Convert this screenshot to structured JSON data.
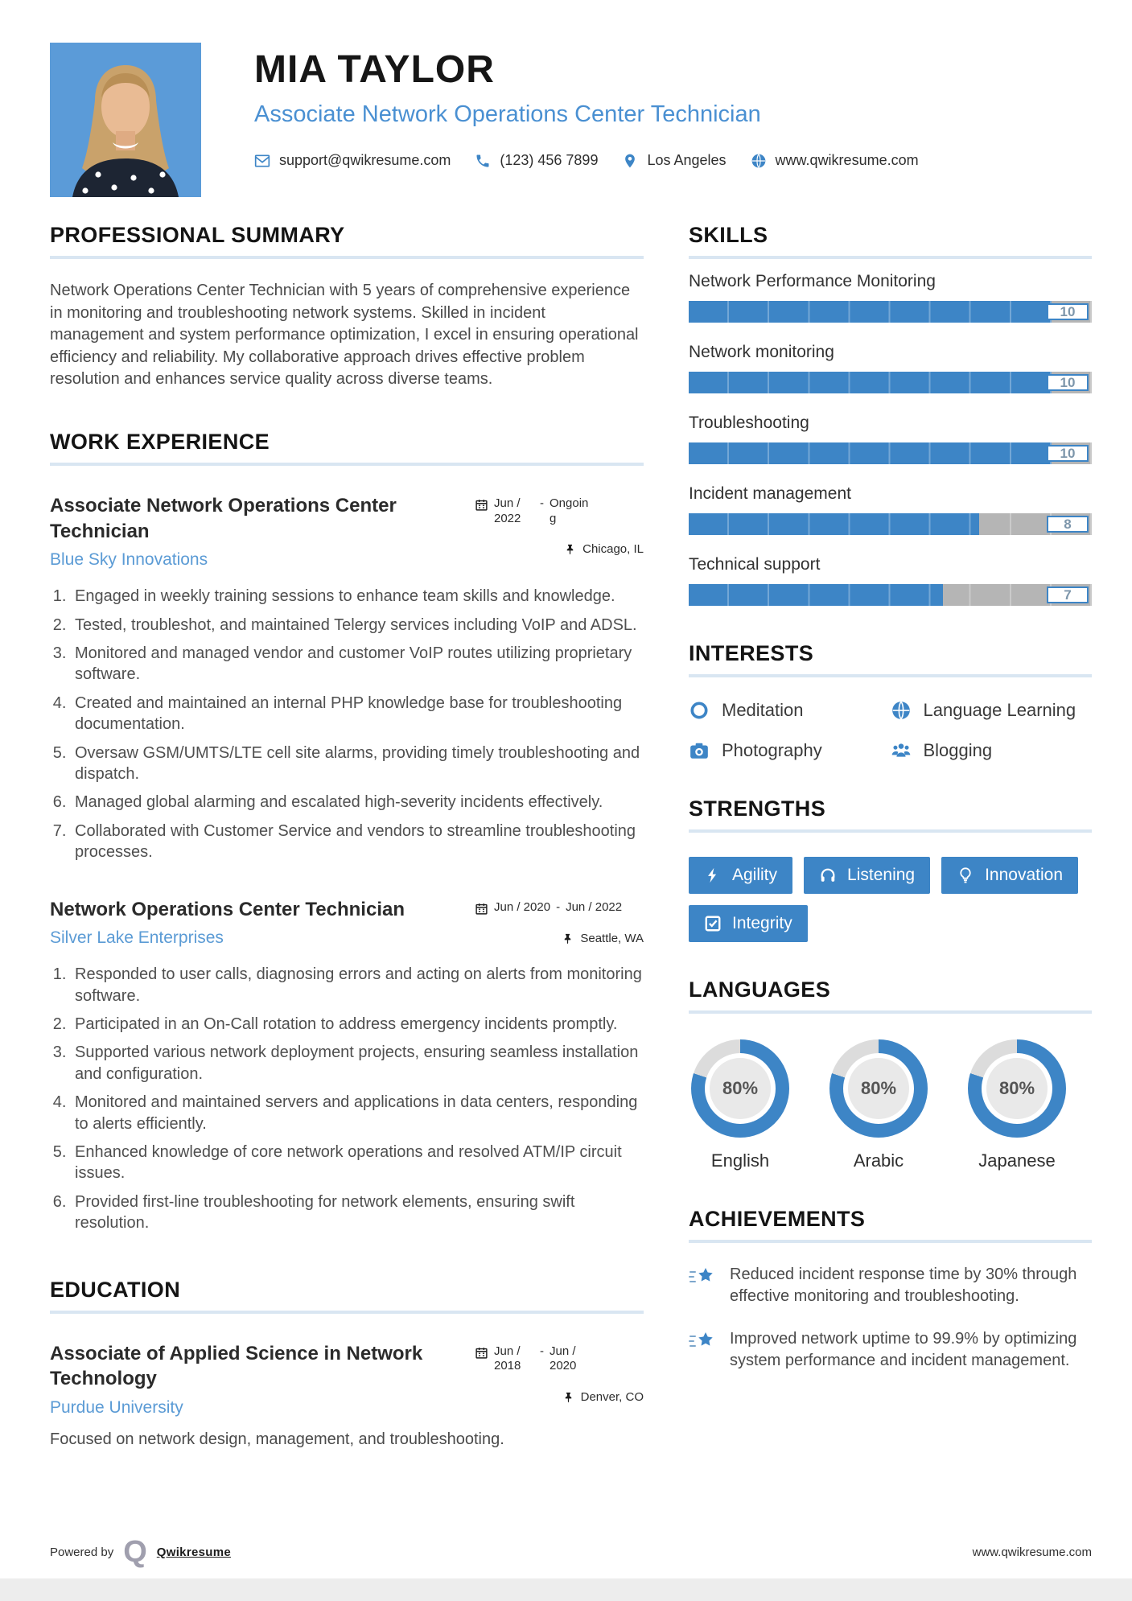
{
  "header": {
    "name": "MIA TAYLOR",
    "title": "Associate Network Operations Center Technician",
    "contact": [
      {
        "icon": "envelope-icon",
        "value": "support@qwikresume.com"
      },
      {
        "icon": "phone-icon",
        "value": "(123) 456 7899"
      },
      {
        "icon": "map-pin-icon",
        "value": "Los Angeles"
      },
      {
        "icon": "globe-icon",
        "value": "www.qwikresume.com"
      }
    ]
  },
  "left": {
    "summary": {
      "heading": "PROFESSIONAL SUMMARY",
      "text": "Network Operations Center Technician with 5 years of comprehensive experience in monitoring and troubleshooting network systems. Skilled in incident management and system performance optimization, I excel in ensuring operational efficiency and reliability. My collaborative approach drives effective problem resolution and enhances service quality across diverse teams."
    },
    "work": {
      "heading": "WORK EXPERIENCE",
      "jobs": [
        {
          "title": "Associate Network Operations Center Technician",
          "company": "Blue Sky Innovations",
          "date_start": "Jun / 2022",
          "date_end": "Ongoing",
          "location": "Chicago, IL",
          "bullets": [
            "Engaged in weekly training sessions to enhance team skills and knowledge.",
            "Tested, troubleshot, and maintained Telergy services including VoIP and ADSL.",
            "Monitored and managed vendor and customer VoIP routes utilizing proprietary software.",
            "Created and maintained an internal PHP knowledge base for troubleshooting documentation.",
            "Oversaw GSM/UMTS/LTE cell site alarms, providing timely troubleshooting and dispatch.",
            "Managed global alarming and escalated high-severity incidents effectively.",
            "Collaborated with Customer Service and vendors to streamline troubleshooting processes."
          ]
        },
        {
          "title": "Network Operations Center Technician",
          "company": "Silver Lake Enterprises",
          "date_start": "Jun / 2020",
          "date_end": "Jun / 2022",
          "location": "Seattle, WA",
          "bullets": [
            "Responded to user calls, diagnosing errors and acting on alerts from monitoring software.",
            "Participated in an On-Call rotation to address emergency incidents promptly.",
            "Supported various network deployment projects, ensuring seamless installation and configuration.",
            "Monitored and maintained servers and applications in data centers, responding to alerts efficiently.",
            "Enhanced knowledge of core network operations and resolved ATM/IP circuit issues.",
            "Provided first-line troubleshooting for network elements, ensuring swift resolution."
          ]
        }
      ]
    },
    "education": {
      "heading": "EDUCATION",
      "degree": "Associate of Applied Science in Network Technology",
      "school": "Purdue University",
      "date_start": "Jun / 2018",
      "date_end": "Jun / 2020",
      "location": "Denver, CO",
      "note": "Focused on network design, management, and troubleshooting."
    }
  },
  "right": {
    "skills": {
      "heading": "SKILLS",
      "items": [
        {
          "label": "Network Performance Monitoring",
          "value": 10
        },
        {
          "label": "Network monitoring",
          "value": 10
        },
        {
          "label": "Troubleshooting",
          "value": 10
        },
        {
          "label": "Incident management",
          "value": 8
        },
        {
          "label": "Technical support",
          "value": 7
        }
      ]
    },
    "interests": {
      "heading": "INTERESTS",
      "items": [
        {
          "label": "Meditation",
          "icon": "ring-icon"
        },
        {
          "label": "Language Learning",
          "icon": "globe-icon"
        },
        {
          "label": "Photography",
          "icon": "camera-icon"
        },
        {
          "label": "Blogging",
          "icon": "users-icon"
        }
      ]
    },
    "strengths": {
      "heading": "STRENGTHS",
      "items": [
        {
          "label": "Agility",
          "icon": "bolt-icon"
        },
        {
          "label": "Listening",
          "icon": "headphones-icon"
        },
        {
          "label": "Innovation",
          "icon": "lightbulb-icon"
        },
        {
          "label": "Integrity",
          "icon": "check-square-icon"
        }
      ]
    },
    "languages": {
      "heading": "LANGUAGES",
      "items": [
        {
          "label": "English",
          "percent": 80,
          "percent_label": "80%"
        },
        {
          "label": "Arabic",
          "percent": 80,
          "percent_label": "80%"
        },
        {
          "label": "Japanese",
          "percent": 80,
          "percent_label": "80%"
        }
      ]
    },
    "achievements": {
      "heading": "ACHIEVEMENTS",
      "items": [
        {
          "text": "Reduced incident response time by 30% through effective monitoring and troubleshooting."
        },
        {
          "text": "Improved network uptime to 99.9% by optimizing system performance and incident management."
        }
      ]
    }
  },
  "footer": {
    "powered_by": "Powered by",
    "brand": "Qwikresume",
    "website": "www.qwikresume.com"
  },
  "colors": {
    "accent": "#3d85c6",
    "title_blue": "#4a90d2",
    "company_blue": "#5b9bd5",
    "bar_empty": "#b5b5b5",
    "donut_gray": "#dcdcdc"
  }
}
